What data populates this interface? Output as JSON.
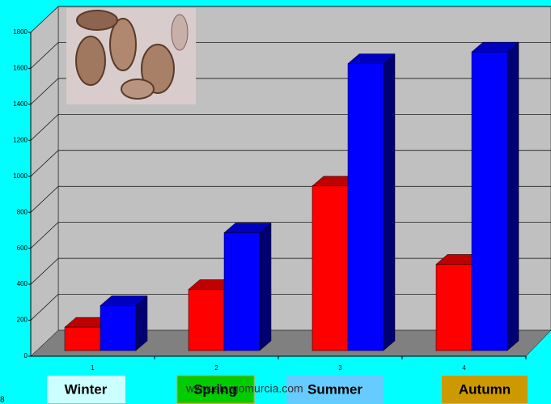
{
  "chart_data": {
    "type": "bar3d",
    "categories": [
      "1",
      "2",
      "3",
      "4"
    ],
    "series": [
      {
        "color": "#ff0000",
        "values": [
          130,
          340,
          915,
          480
        ]
      },
      {
        "color": "#0000ff",
        "values": [
          250,
          655,
          1595,
          1660
        ]
      }
    ],
    "ylim": [
      0,
      1800
    ],
    "yticks": [
      0,
      200,
      400,
      600,
      800,
      1000,
      1200,
      1400,
      1600,
      1800
    ],
    "grid": true,
    "season_labels": [
      {
        "text": "Winter",
        "color": "#ccffff"
      },
      {
        "text": "Spring",
        "color": "#00cc00"
      },
      {
        "text": "Summer",
        "color": "#66ccff"
      },
      {
        "text": "Autumn",
        "color": "#cc9900"
      }
    ],
    "website": "www.alergomurcia.com",
    "corner_text": "8"
  }
}
